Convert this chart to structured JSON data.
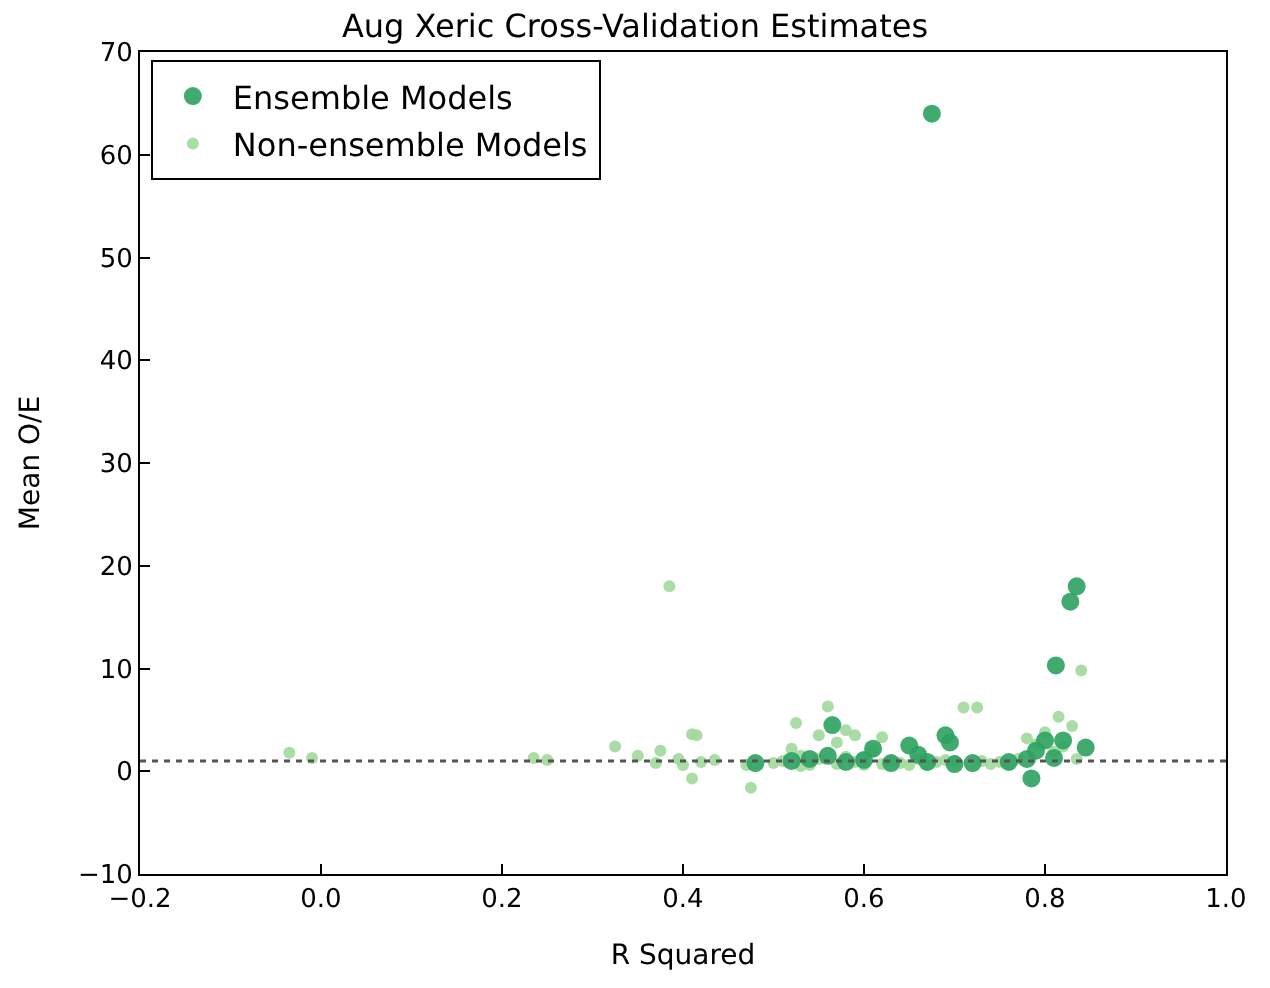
{
  "chart_data": {
    "type": "scatter",
    "title": "Aug Xeric Cross-Validation Estimates",
    "xlabel": "R Squared",
    "ylabel": "Mean O/E",
    "xlim": [
      -0.2,
      1.0
    ],
    "xticks": [
      {
        "value": -0.2,
        "label": "−0.2"
      },
      {
        "value": 0,
        "label": "0.0"
      },
      0.2,
      0.4,
      0.6,
      0.8,
      {
        "value": 1,
        "label": "1.0"
      }
    ],
    "ylim": [
      -10,
      70
    ],
    "yticks": [
      {
        "value": -10,
        "label": "−10"
      },
      0,
      10,
      20,
      30,
      40,
      50,
      60,
      70
    ],
    "legend": "top left",
    "marker": "circle",
    "ref_lines": [
      {
        "axis": "y",
        "value": 1,
        "color": "#555555",
        "line_style": "dotted"
      }
    ],
    "series": [
      {
        "name": "Non-ensemble Models",
        "color": "#a1d99b",
        "x": [
          -0.035,
          -0.01,
          0.235,
          0.25,
          0.325,
          0.35,
          0.37,
          0.375,
          0.385,
          0.395,
          0.4,
          0.41,
          0.41,
          0.415,
          0.42,
          0.435,
          0.475,
          0.47,
          0.5,
          0.51,
          0.52,
          0.525,
          0.53,
          0.54,
          0.55,
          0.55,
          0.56,
          0.57,
          0.58,
          0.58,
          0.59,
          0.59,
          0.6,
          0.61,
          0.62,
          0.62,
          0.63,
          0.64,
          0.66,
          0.67,
          0.68,
          0.7,
          0.71,
          0.72,
          0.725,
          0.73,
          0.74,
          0.75,
          0.76,
          0.77,
          0.78,
          0.79,
          0.8,
          0.81,
          0.815,
          0.82,
          0.83,
          0.835,
          0.84,
          0.53,
          0.57,
          0.6,
          0.65,
          0.69
        ],
        "values": [
          1.8,
          1.3,
          1.3,
          1.1,
          2.4,
          1.5,
          0.8,
          2.0,
          18,
          1.2,
          0.6,
          -0.7,
          3.6,
          3.5,
          0.9,
          1.1,
          -1.6,
          0.6,
          0.8,
          1.0,
          2.2,
          4.7,
          1.5,
          0.6,
          3.5,
          1.2,
          6.3,
          0.7,
          4.0,
          1.4,
          3.5,
          0.9,
          0.6,
          2.0,
          3.3,
          0.7,
          1.0,
          0.8,
          1.2,
          0.6,
          0.9,
          1.0,
          6.2,
          null,
          6.2,
          1.0,
          0.7,
          0.9,
          0.7,
          1.2,
          3.2,
          2.6,
          3.8,
          1.9,
          5.3,
          2.4,
          4.4,
          1.2,
          9.8,
          0.5,
          2.8,
          1.3,
          0.6,
          1.1
        ]
      },
      {
        "name": "Ensemble Models",
        "color": "#2ca25f",
        "x": [
          0.675,
          0.835,
          0.828,
          0.812,
          0.845,
          0.8,
          0.785,
          0.69,
          0.695,
          0.65,
          0.565,
          0.48,
          0.52,
          0.54,
          0.56,
          0.58,
          0.6,
          0.61,
          0.63,
          0.66,
          0.67,
          0.7,
          0.72,
          0.78,
          0.79,
          0.81,
          0.82,
          0.76
        ],
        "values": [
          64,
          18,
          16.5,
          10.3,
          2.3,
          3.0,
          -0.7,
          3.5,
          2.8,
          2.5,
          4.5,
          0.8,
          1.0,
          1.2,
          1.5,
          0.9,
          1.1,
          2.2,
          0.8,
          1.6,
          0.9,
          0.7,
          0.8,
          1.2,
          2.0,
          1.3,
          3.0,
          0.9
        ]
      }
    ]
  }
}
